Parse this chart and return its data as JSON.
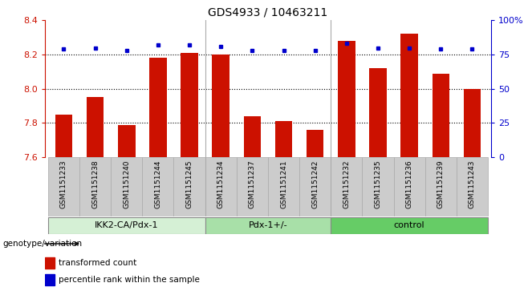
{
  "title": "GDS4933 / 10463211",
  "samples": [
    "GSM1151233",
    "GSM1151238",
    "GSM1151240",
    "GSM1151244",
    "GSM1151245",
    "GSM1151234",
    "GSM1151237",
    "GSM1151241",
    "GSM1151242",
    "GSM1151232",
    "GSM1151235",
    "GSM1151236",
    "GSM1151239",
    "GSM1151243"
  ],
  "bar_values": [
    7.85,
    7.95,
    7.79,
    8.18,
    8.21,
    8.2,
    7.84,
    7.81,
    7.76,
    8.28,
    8.12,
    8.32,
    8.09,
    8.0
  ],
  "dot_values": [
    79,
    80,
    78,
    82,
    82,
    81,
    78,
    78,
    78,
    83,
    80,
    80,
    79,
    79
  ],
  "groups": [
    {
      "label": "IKK2-CA/Pdx-1",
      "start": 0,
      "end": 5,
      "color": "#d5f0d5"
    },
    {
      "label": "Pdx-1+/-",
      "start": 5,
      "end": 9,
      "color": "#a8e0a8"
    },
    {
      "label": "control",
      "start": 9,
      "end": 14,
      "color": "#66cc66"
    }
  ],
  "ylim_left": [
    7.6,
    8.4
  ],
  "ylim_right": [
    0,
    100
  ],
  "yticks_left": [
    7.6,
    7.8,
    8.0,
    8.2,
    8.4
  ],
  "yticks_right": [
    0,
    25,
    50,
    75,
    100
  ],
  "bar_color": "#cc1100",
  "dot_color": "#0000cc",
  "grid_dotted_values": [
    7.8,
    8.0,
    8.2
  ],
  "ylabel_left_color": "#cc1100",
  "ylabel_right_color": "#0000cc",
  "legend_items": [
    "transformed count",
    "percentile rank within the sample"
  ],
  "genotype_label": "genotype/variation",
  "bar_width": 0.55,
  "tick_bg_color": "#cccccc",
  "tick_border_color": "#aaaaaa"
}
